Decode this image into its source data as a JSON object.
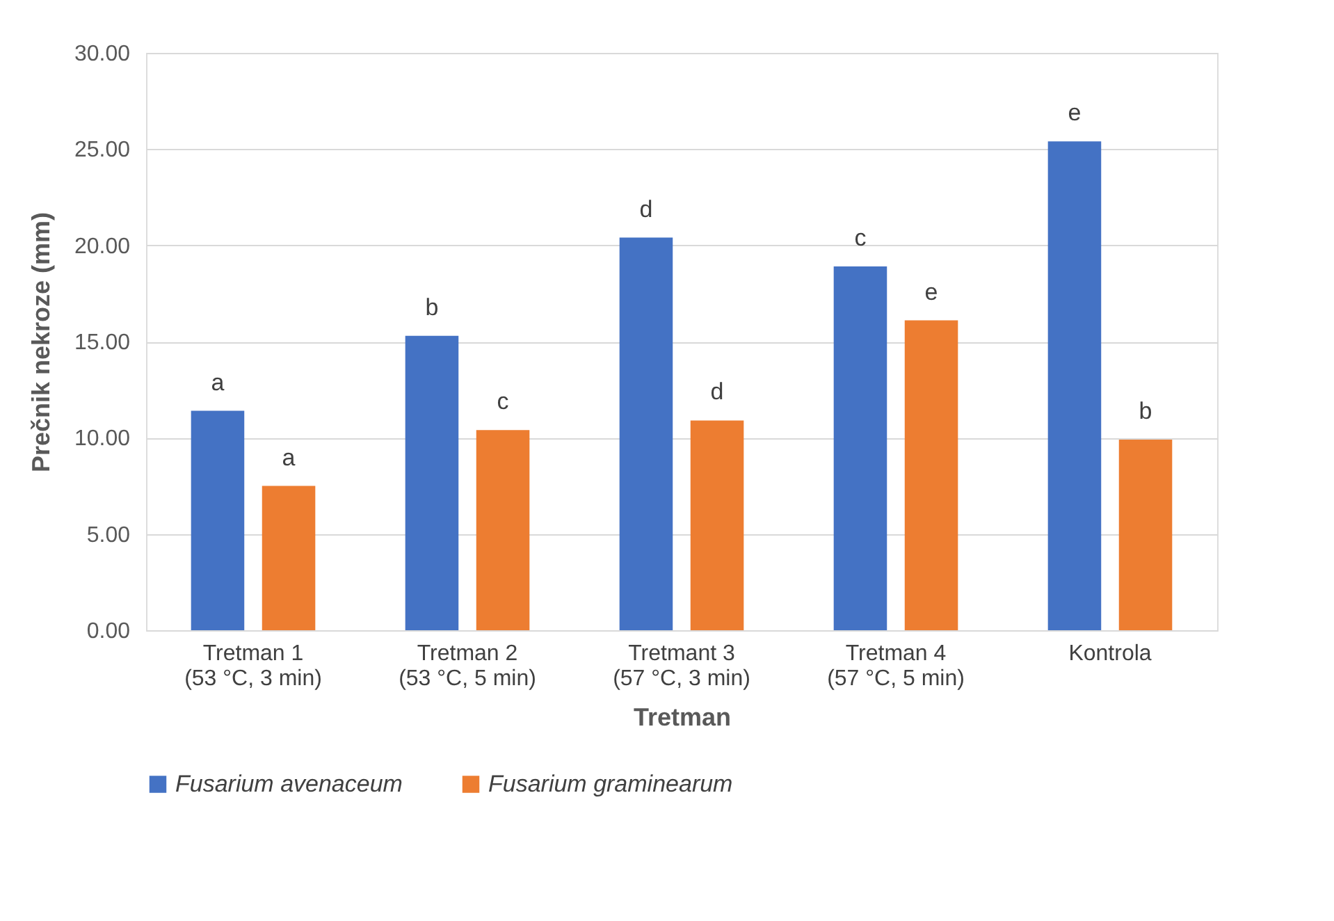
{
  "chart_data": {
    "type": "bar",
    "xlabel": "Tretman",
    "ylabel": "Prečnik nekroze (mm)",
    "categories": [
      "Tretman 1\n(53 °C, 3 min)",
      "Tretman 2\n(53 °C, 5 min)",
      "Tretmant 3\n(57 °C, 3 min)",
      "Tretman 4\n(57 °C, 5 min)",
      "Kontrola"
    ],
    "series": [
      {
        "name": "Fusarium avenaceum",
        "color": "#4472c4",
        "values": [
          11.4,
          15.3,
          20.4,
          18.9,
          25.4
        ],
        "value_labels": [
          "a",
          "b",
          "d",
          "c",
          "e"
        ]
      },
      {
        "name": "Fusarium graminearum",
        "color": "#ed7d31",
        "values": [
          7.5,
          10.4,
          10.9,
          16.1,
          9.9
        ],
        "value_labels": [
          "a",
          "c",
          "d",
          "e",
          "b"
        ]
      }
    ],
    "ylim": [
      0,
      30
    ],
    "yticks": [
      {
        "value": 0,
        "label": "0.00"
      },
      {
        "value": 5,
        "label": "5.00"
      },
      {
        "value": 10,
        "label": "10.00"
      },
      {
        "value": 15,
        "label": "15.00"
      },
      {
        "value": 20,
        "label": "20.00"
      },
      {
        "value": 25,
        "label": "25.00"
      },
      {
        "value": 30,
        "label": "30.00"
      }
    ],
    "grid": "y",
    "legend": "bottom"
  }
}
